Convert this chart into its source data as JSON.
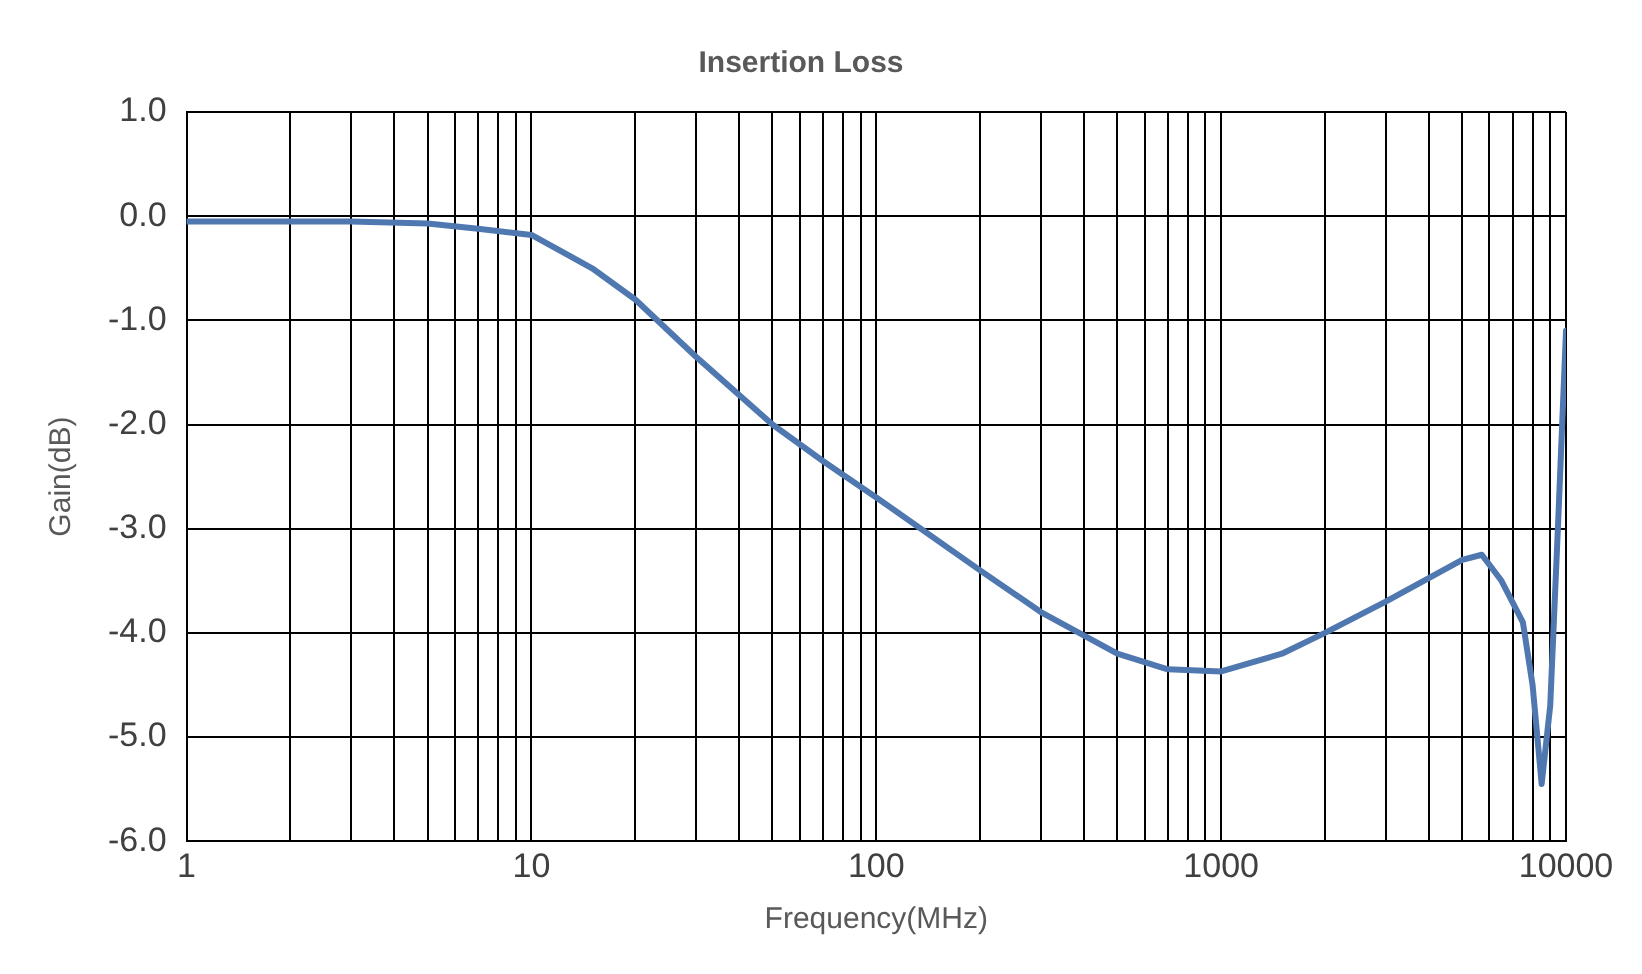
{
  "chart_data": {
    "type": "line",
    "title": "Insertion Loss",
    "xlabel": "Frequency(MHz)",
    "ylabel": "Gain(dB)",
    "log": "x",
    "series": [
      {
        "color": "#4f78b0",
        "x": [
          1,
          2,
          3,
          5,
          7,
          10,
          15,
          20,
          30,
          50,
          70,
          100,
          200,
          300,
          500,
          700,
          1000,
          1500,
          2000,
          3000,
          5000,
          5700,
          6500,
          7500,
          8000,
          8500,
          9000,
          9500,
          10000
        ],
        "values": [
          -0.05,
          -0.05,
          -0.05,
          -0.07,
          -0.12,
          -0.18,
          -0.5,
          -0.8,
          -1.35,
          -2.0,
          -2.35,
          -2.7,
          -3.4,
          -3.8,
          -4.2,
          -4.35,
          -4.37,
          -4.2,
          -4.0,
          -3.7,
          -3.3,
          -3.25,
          -3.5,
          -3.9,
          -4.5,
          -5.45,
          -4.7,
          -2.9,
          -1.1
        ]
      }
    ],
    "xlim": [
      1,
      10000
    ],
    "xticks": [
      1,
      {
        "value": 2,
        "label": null
      },
      {
        "value": 3,
        "label": null
      },
      {
        "value": 4,
        "label": null
      },
      {
        "value": 5,
        "label": null
      },
      {
        "value": 6,
        "label": null
      },
      {
        "value": 7,
        "label": null
      },
      {
        "value": 8,
        "label": null
      },
      {
        "value": 9,
        "label": null
      },
      10,
      {
        "value": 20,
        "label": null
      },
      {
        "value": 30,
        "label": null
      },
      {
        "value": 40,
        "label": null
      },
      {
        "value": 50,
        "label": null
      },
      {
        "value": 60,
        "label": null
      },
      {
        "value": 70,
        "label": null
      },
      {
        "value": 80,
        "label": null
      },
      {
        "value": 90,
        "label": null
      },
      100,
      {
        "value": 200,
        "label": null
      },
      {
        "value": 300,
        "label": null
      },
      {
        "value": 400,
        "label": null
      },
      {
        "value": 500,
        "label": null
      },
      {
        "value": 600,
        "label": null
      },
      {
        "value": 700,
        "label": null
      },
      {
        "value": 800,
        "label": null
      },
      {
        "value": 900,
        "label": null
      },
      1000,
      {
        "value": 2000,
        "label": null
      },
      {
        "value": 3000,
        "label": null
      },
      {
        "value": 4000,
        "label": null
      },
      {
        "value": 5000,
        "label": null
      },
      {
        "value": 6000,
        "label": null
      },
      {
        "value": 7000,
        "label": null
      },
      {
        "value": 8000,
        "label": null
      },
      {
        "value": 9000,
        "label": null
      },
      10000
    ],
    "ylim": [
      -6,
      1
    ],
    "yticks": [
      {
        "value": 1,
        "label": "1.0"
      },
      {
        "value": 0,
        "label": "0.0"
      },
      {
        "value": -1,
        "label": "-1.0"
      },
      {
        "value": -2,
        "label": "-2.0"
      },
      {
        "value": -3,
        "label": "-3.0"
      },
      {
        "value": -4,
        "label": "-4.0"
      },
      {
        "value": -5,
        "label": "-5.0"
      },
      {
        "value": -6,
        "label": "-6.0"
      }
    ],
    "grid": true,
    "marker": "none",
    "line_style": "solid"
  }
}
